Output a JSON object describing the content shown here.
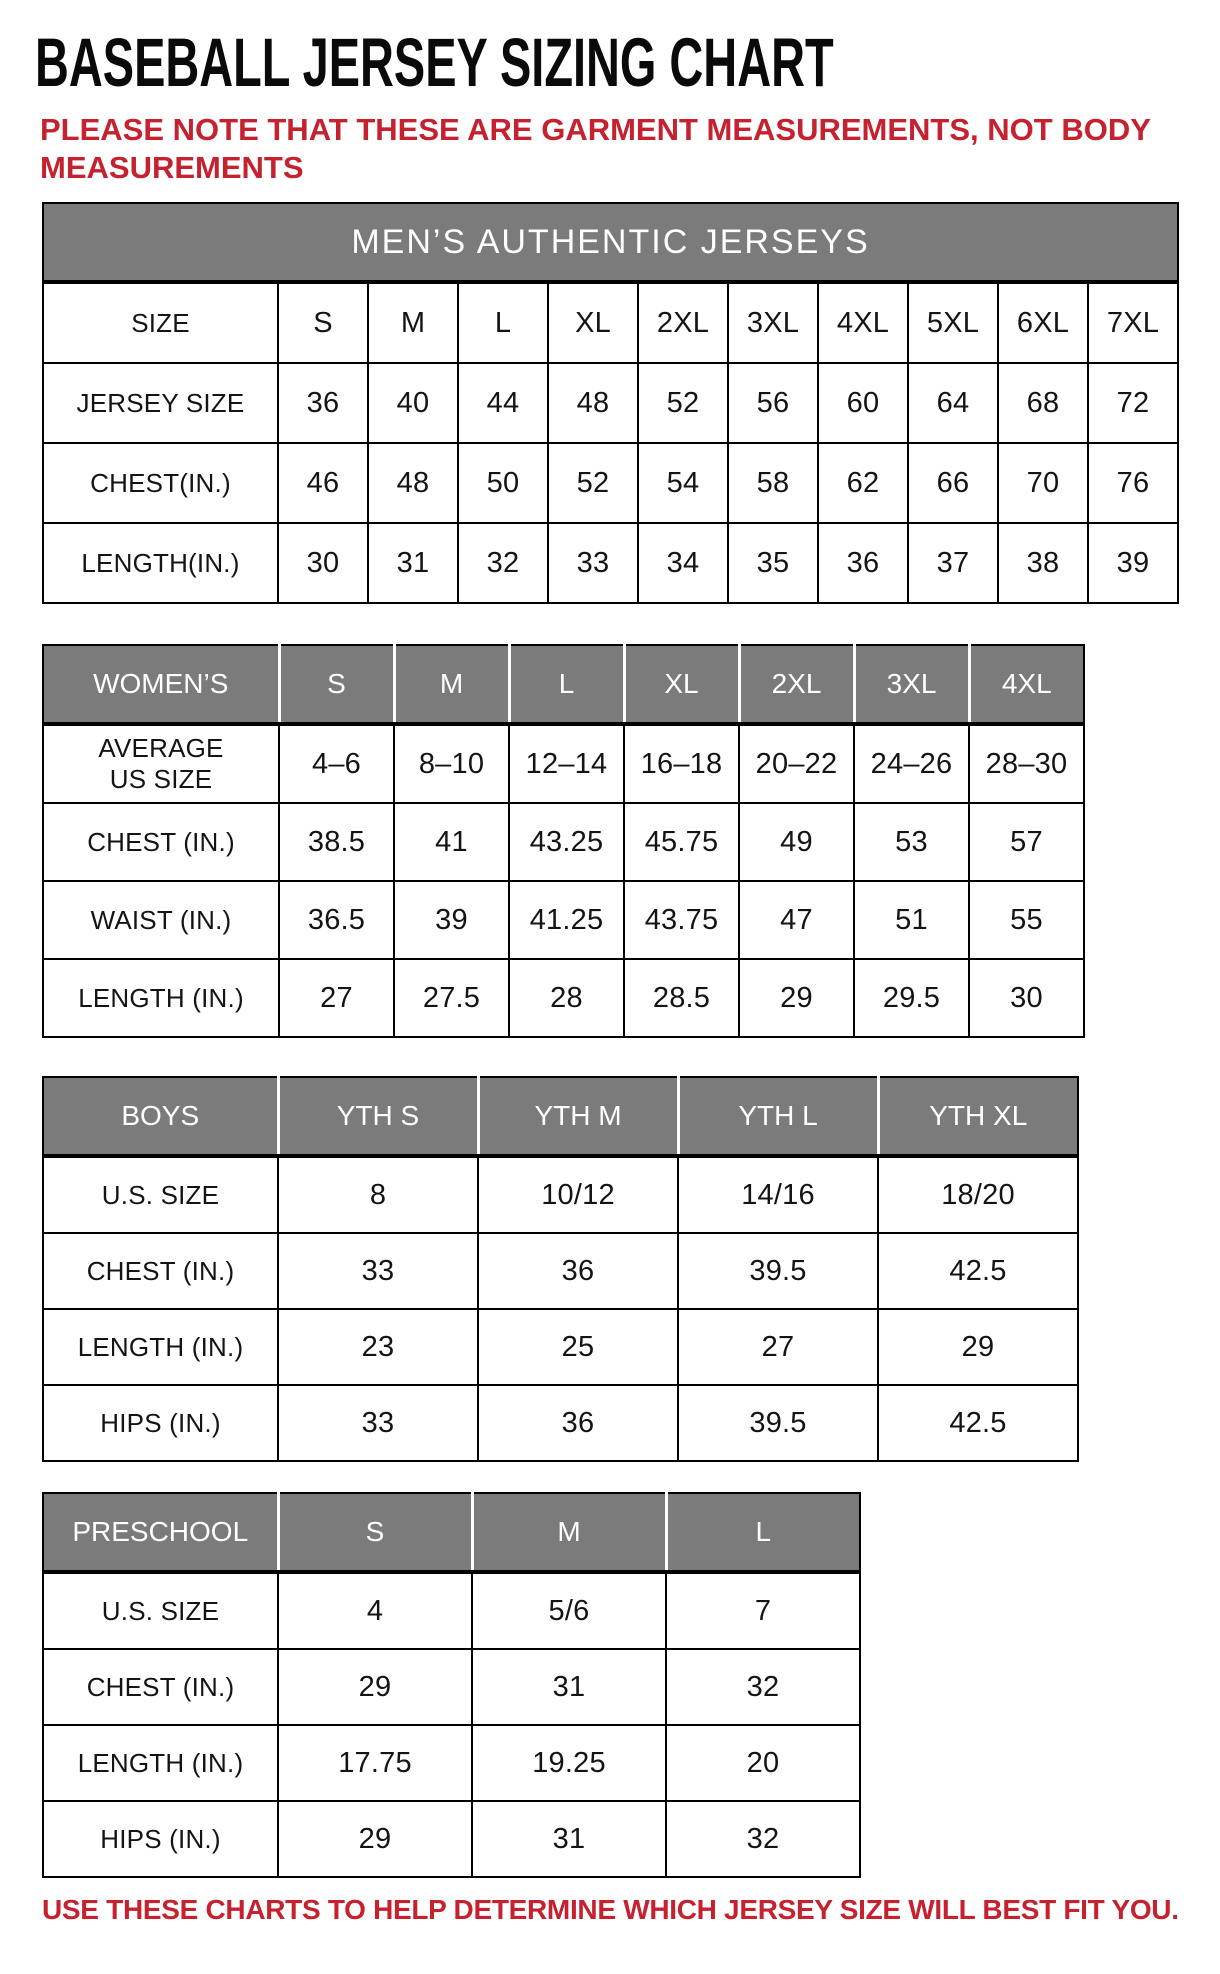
{
  "page": {
    "title": "BASEBALL JERSEY SIZING CHART",
    "note": "PLEASE NOTE THAT THESE ARE GARMENT MEASUREMENTS, NOT BODY MEASUREMENTS",
    "footer": "USE THESE CHARTS TO HELP DETERMINE WHICH JERSEY SIZE WILL BEST FIT YOU.",
    "colors": {
      "accent_red": "#c6212f",
      "header_gray": "#7b7b7b",
      "border_black": "#000000",
      "header_text": "#ffffff"
    }
  },
  "tables": {
    "mens": {
      "header": "MEN’S AUTHENTIC JERSEYS",
      "rows": [
        {
          "label": "SIZE",
          "values": [
            "S",
            "M",
            "L",
            "XL",
            "2XL",
            "3XL",
            "4XL",
            "5XL",
            "6XL",
            "7XL"
          ]
        },
        {
          "label": "JERSEY SIZE",
          "values": [
            "36",
            "40",
            "44",
            "48",
            "52",
            "56",
            "60",
            "64",
            "68",
            "72"
          ]
        },
        {
          "label": "CHEST(IN.)",
          "values": [
            "46",
            "48",
            "50",
            "52",
            "54",
            "58",
            "62",
            "66",
            "70",
            "76"
          ]
        },
        {
          "label": "LENGTH(IN.)",
          "values": [
            "30",
            "31",
            "32",
            "33",
            "34",
            "35",
            "36",
            "37",
            "38",
            "39"
          ]
        }
      ]
    },
    "womens": {
      "header_label": "WOMEN’S",
      "columns": [
        "S",
        "M",
        "L",
        "XL",
        "2XL",
        "3XL",
        "4XL"
      ],
      "rows": [
        {
          "label": "AVERAGE\nUS SIZE",
          "values": [
            "4–6",
            "8–10",
            "12–14",
            "16–18",
            "20–22",
            "24–26",
            "28–30"
          ]
        },
        {
          "label": "CHEST (IN.)",
          "values": [
            "38.5",
            "41",
            "43.25",
            "45.75",
            "49",
            "53",
            "57"
          ]
        },
        {
          "label": "WAIST (IN.)",
          "values": [
            "36.5",
            "39",
            "41.25",
            "43.75",
            "47",
            "51",
            "55"
          ]
        },
        {
          "label": "LENGTH (IN.)",
          "values": [
            "27",
            "27.5",
            "28",
            "28.5",
            "29",
            "29.5",
            "30"
          ]
        }
      ]
    },
    "boys": {
      "header_label": "BOYS",
      "columns": [
        "YTH S",
        "YTH M",
        "YTH L",
        "YTH XL"
      ],
      "rows": [
        {
          "label": "U.S. SIZE",
          "values": [
            "8",
            "10/12",
            "14/16",
            "18/20"
          ]
        },
        {
          "label": "CHEST (IN.)",
          "values": [
            "33",
            "36",
            "39.5",
            "42.5"
          ]
        },
        {
          "label": "LENGTH (IN.)",
          "values": [
            "23",
            "25",
            "27",
            "29"
          ]
        },
        {
          "label": "HIPS (IN.)",
          "values": [
            "33",
            "36",
            "39.5",
            "42.5"
          ]
        }
      ]
    },
    "preschool": {
      "header_label": "PRESCHOOL",
      "columns": [
        "S",
        "M",
        "L"
      ],
      "rows": [
        {
          "label": "U.S. SIZE",
          "values": [
            "4",
            "5/6",
            "7"
          ]
        },
        {
          "label": "CHEST (IN.)",
          "values": [
            "29",
            "31",
            "32"
          ]
        },
        {
          "label": "LENGTH (IN.)",
          "values": [
            "17.75",
            "19.25",
            "20"
          ]
        },
        {
          "label": "HIPS (IN.)",
          "values": [
            "29",
            "31",
            "32"
          ]
        }
      ]
    }
  }
}
